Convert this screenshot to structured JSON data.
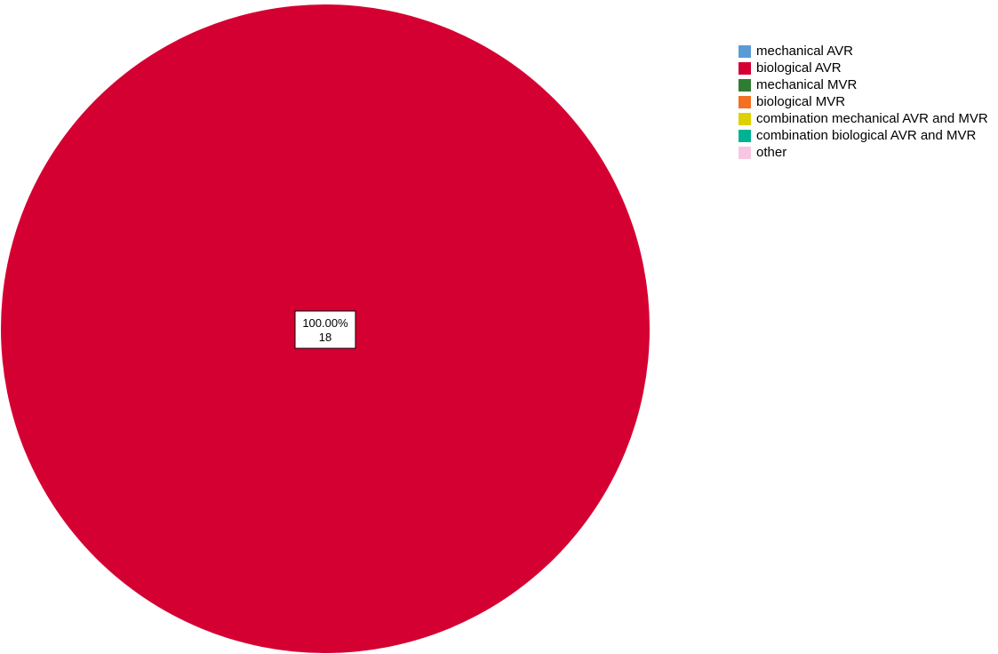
{
  "chart_data": {
    "type": "pie",
    "categories": [
      "mechanical AVR",
      "biological AVR",
      "mechanical MVR",
      "biological MVR",
      "combination mechanical AVR and MVR",
      "combination biological AVR and MVR",
      "other"
    ],
    "values": [
      0,
      18,
      0,
      0,
      0,
      0,
      0
    ],
    "colors": [
      "#5b9bd5",
      "#d50032",
      "#2e7d32",
      "#f36f21",
      "#dfd100",
      "#00b294",
      "#f7c6e0"
    ],
    "data_labels": [
      {
        "category": "biological AVR",
        "percent": "100.00%",
        "count": "18"
      }
    ],
    "legend_position": "right",
    "title": "",
    "grid": false
  },
  "legend": {
    "items": [
      {
        "label": "mechanical AVR",
        "color": "#5b9bd5"
      },
      {
        "label": "biological AVR",
        "color": "#d50032"
      },
      {
        "label": "mechanical MVR",
        "color": "#2e7d32"
      },
      {
        "label": "biological MVR",
        "color": "#f36f21"
      },
      {
        "label": "combination mechanical AVR and MVR",
        "color": "#dfd100"
      },
      {
        "label": "combination biological AVR and MVR",
        "color": "#00b294"
      },
      {
        "label": "other",
        "color": "#f7c6e0"
      }
    ]
  }
}
